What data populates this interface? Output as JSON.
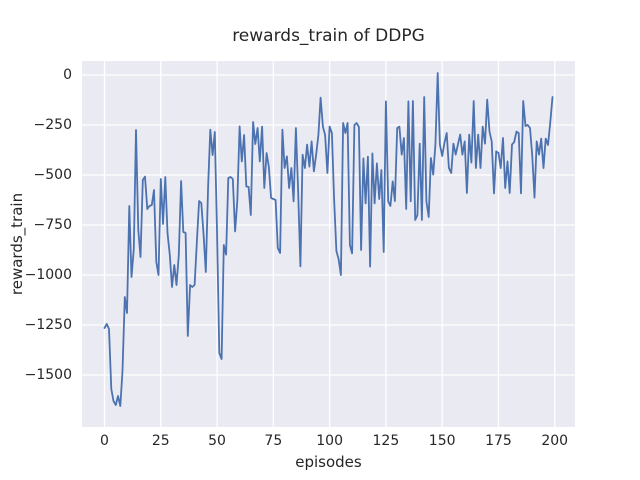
{
  "figure": {
    "title": "rewards_train of DDPG",
    "xlabel": "episodes",
    "ylabel": "rewards_train"
  },
  "chart_data": {
    "type": "line",
    "title": "rewards_train of DDPG",
    "xlabel": "episodes",
    "ylabel": "rewards_train",
    "x_ticks": [
      0,
      25,
      50,
      75,
      100,
      125,
      150,
      175,
      200
    ],
    "y_ticks": [
      0,
      -250,
      -500,
      -750,
      -1000,
      -1250,
      -1500
    ],
    "xlim": [
      -10,
      209
    ],
    "ylim": [
      -1760,
      70
    ],
    "grid": true,
    "legend_position": "none",
    "style": {
      "figure_background": "#ffffff",
      "axes_background": "#eaeaf2",
      "grid_color": "#ffffff",
      "line_color": "#4c72b0",
      "text_color": "#262626"
    },
    "series": [
      {
        "name": "rewards_train",
        "color": "#4c72b0",
        "x0": 0,
        "dx": 1,
        "values": [
          -1265,
          -1245,
          -1270,
          -1570,
          -1630,
          -1650,
          -1605,
          -1655,
          -1480,
          -1110,
          -1190,
          -655,
          -1010,
          -870,
          -275,
          -775,
          -910,
          -525,
          -508,
          -670,
          -655,
          -650,
          -575,
          -935,
          -1000,
          -520,
          -745,
          -510,
          -790,
          -900,
          -1060,
          -950,
          -1050,
          -900,
          -530,
          -785,
          -790,
          -1305,
          -1050,
          -1060,
          -1050,
          -840,
          -630,
          -640,
          -800,
          -985,
          -560,
          -273,
          -400,
          -285,
          -800,
          -1390,
          -1420,
          -850,
          -898,
          -515,
          -510,
          -520,
          -782,
          -630,
          -257,
          -432,
          -300,
          -557,
          -560,
          -700,
          -235,
          -345,
          -265,
          -432,
          -258,
          -565,
          -390,
          -458,
          -615,
          -620,
          -625,
          -865,
          -890,
          -273,
          -465,
          -407,
          -565,
          -465,
          -632,
          -265,
          -573,
          -957,
          -398,
          -465,
          -348,
          -458,
          -332,
          -482,
          -400,
          -300,
          -113,
          -258,
          -300,
          -490,
          -258,
          -290,
          -620,
          -880,
          -920,
          -1000,
          -240,
          -290,
          -240,
          -850,
          -892,
          -250,
          -240,
          -260,
          -875,
          -417,
          -642,
          -408,
          -958,
          -392,
          -642,
          -442,
          -620,
          -475,
          -885,
          -132,
          -632,
          -655,
          -532,
          -630,
          -265,
          -258,
          -398,
          -315,
          -670,
          -132,
          -632,
          -130,
          -725,
          -700,
          -343,
          -725,
          -110,
          -632,
          -710,
          -415,
          -498,
          -350,
          10,
          -348,
          -405,
          -340,
          -290,
          -465,
          -490,
          -343,
          -398,
          -348,
          -298,
          -398,
          -332,
          -590,
          -298,
          -438,
          -130,
          -465,
          -298,
          -465,
          -258,
          -343,
          -123,
          -283,
          -332,
          -592,
          -382,
          -390,
          -465,
          -315,
          -565,
          -432,
          -590,
          -348,
          -335,
          -283,
          -290,
          -592,
          -130,
          -255,
          -250,
          -265,
          -400,
          -613,
          -332,
          -398,
          -318,
          -465,
          -318,
          -350,
          -240,
          -110
        ]
      }
    ]
  }
}
